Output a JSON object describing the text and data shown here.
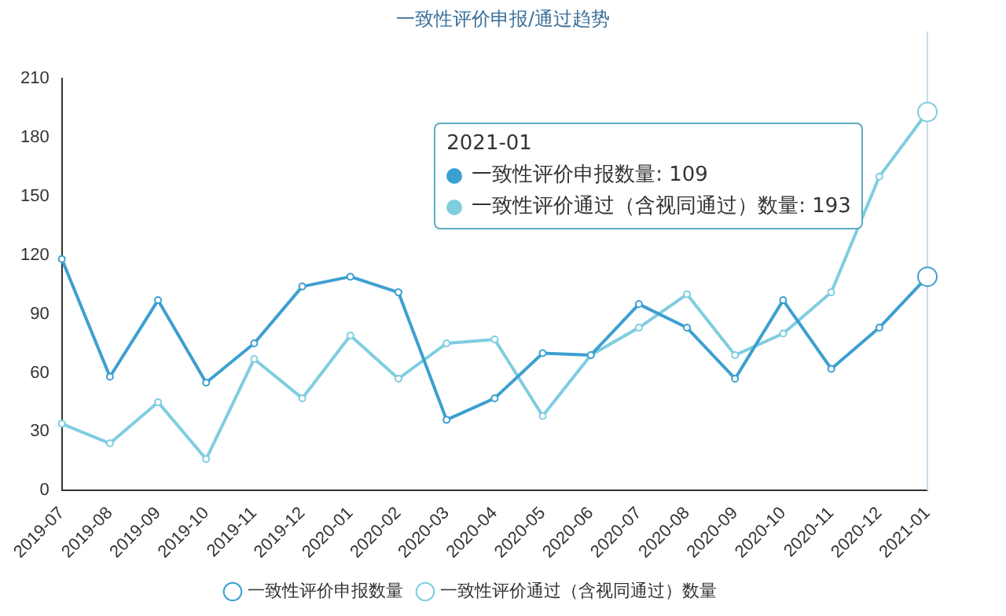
{
  "chart_data": {
    "type": "line",
    "title": "一致性评价申报/通过趋势",
    "categories": [
      "2019-07",
      "2019-08",
      "2019-09",
      "2019-10",
      "2019-11",
      "2019-12",
      "2020-01",
      "2020-02",
      "2020-03",
      "2020-04",
      "2020-05",
      "2020-06",
      "2020-07",
      "2020-08",
      "2020-09",
      "2020-10",
      "2020-11",
      "2020-12",
      "2021-01"
    ],
    "series": [
      {
        "name": "一致性评价申报数量",
        "color": "#3d9fd0",
        "values": [
          118,
          58,
          97,
          55,
          75,
          104,
          109,
          101,
          36,
          47,
          70,
          69,
          95,
          83,
          57,
          97,
          62,
          83,
          109
        ]
      },
      {
        "name": "一致性评价通过（含视同通过）数量",
        "color": "#80cde0",
        "values": [
          34,
          24,
          45,
          16,
          67,
          47,
          79,
          57,
          75,
          77,
          38,
          69,
          83,
          100,
          69,
          80,
          101,
          160,
          193
        ]
      }
    ],
    "ylim": [
      0,
      210
    ],
    "yticks": [
      0,
      30,
      60,
      90,
      120,
      150,
      180,
      210
    ],
    "grid": false,
    "legend": "bottom",
    "marker": "circle",
    "line_style": "solid",
    "ref_lines": [
      {
        "axis": "x",
        "value": "2021-01",
        "color": "#c8dde8"
      }
    ],
    "annotations": [
      "2021-01",
      "一致性评价申报数量: 109",
      "一致性评价通过（含视同通过）数量: 193"
    ]
  }
}
